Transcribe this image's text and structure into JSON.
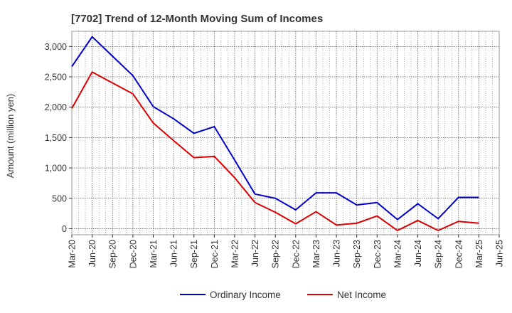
{
  "chart_data": {
    "type": "line",
    "title": "[7702]  Trend of 12-Month Moving Sum of Incomes",
    "xlabel": "",
    "ylabel": "Amount (million yen)",
    "ylim": [
      -100,
      3250
    ],
    "yticks": [
      0,
      500,
      1000,
      1500,
      2000,
      2500,
      3000
    ],
    "ytick_labels": [
      "0",
      "500",
      "1,000",
      "1,500",
      "2,000",
      "2,500",
      "3,000"
    ],
    "categories": [
      "Mar-20",
      "Jun-20",
      "Sep-20",
      "Dec-20",
      "Mar-21",
      "Jun-21",
      "Sep-21",
      "Dec-21",
      "Mar-22",
      "Jun-22",
      "Sep-22",
      "Dec-22",
      "Mar-23",
      "Jun-23",
      "Sep-23",
      "Dec-23",
      "Mar-24",
      "Jun-24",
      "Sep-24",
      "Dec-24",
      "Mar-25",
      "Jun-25"
    ],
    "grid": true,
    "legend_position": "bottom",
    "series": [
      {
        "name": "Ordinary Income",
        "color": "#0000cc",
        "values": [
          2670,
          3160,
          2840,
          2520,
          2010,
          1810,
          1570,
          1680,
          1130,
          570,
          500,
          310,
          590,
          590,
          390,
          430,
          150,
          410,
          165,
          515,
          515,
          null
        ]
      },
      {
        "name": "Net Income",
        "color": "#dd0000",
        "values": [
          1980,
          2580,
          2400,
          2220,
          1740,
          1450,
          1170,
          1190,
          840,
          430,
          270,
          80,
          280,
          60,
          90,
          210,
          -30,
          135,
          -30,
          120,
          90,
          null
        ]
      }
    ]
  }
}
